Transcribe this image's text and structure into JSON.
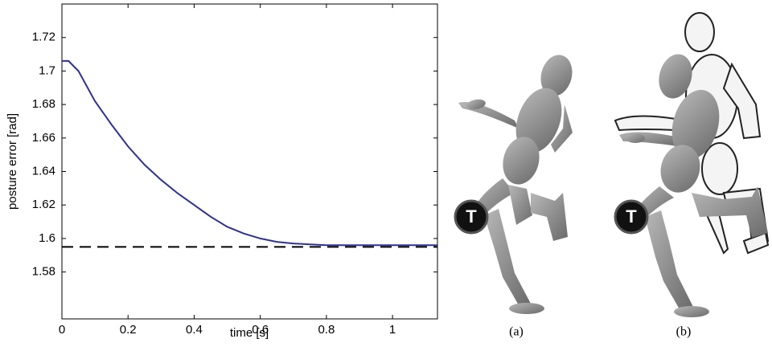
{
  "chart_data": {
    "type": "line",
    "x": [
      0,
      0.02,
      0.05,
      0.1,
      0.15,
      0.2,
      0.25,
      0.3,
      0.35,
      0.4,
      0.45,
      0.5,
      0.55,
      0.6,
      0.65,
      0.7,
      0.8,
      0.9,
      1.0,
      1.136
    ],
    "series": [
      {
        "color": "#2e3192",
        "values": [
          1.706,
          1.706,
          1.7,
          1.682,
          1.668,
          1.655,
          1.644,
          1.635,
          1.627,
          1.62,
          1.613,
          1.607,
          1.603,
          1.6,
          1.598,
          1.597,
          1.596,
          1.596,
          1.596,
          1.596
        ]
      }
    ],
    "reference_line": 1.595,
    "reference_color": "#000000",
    "xlabel": "time [s]",
    "ylabel": "posture error [rad]",
    "xlim": [
      0,
      1.136
    ],
    "ylim": [
      1.552,
      1.74
    ],
    "xticks": [
      0,
      0.2,
      0.4,
      0.6,
      0.8,
      1
    ],
    "yticks": [
      1.58,
      1.6,
      1.62,
      1.64,
      1.66,
      1.68,
      1.7,
      1.72
    ]
  },
  "panels": [
    {
      "caption": "(a)",
      "marker": "T"
    },
    {
      "caption": "(b)",
      "marker": "T"
    }
  ]
}
